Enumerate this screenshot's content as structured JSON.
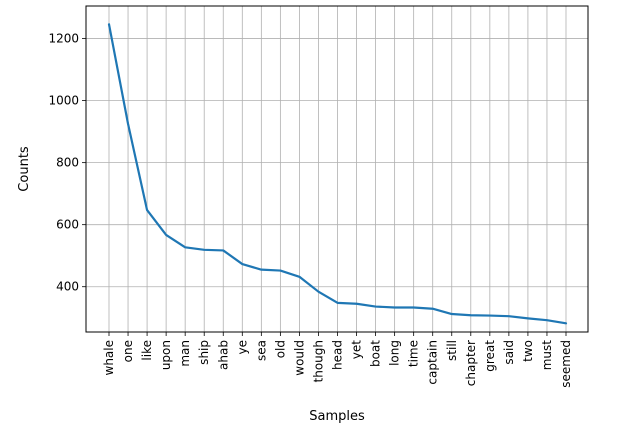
{
  "chart_data": {
    "type": "line",
    "xlabel": "Samples",
    "ylabel": "Counts",
    "categories": [
      "whale",
      "one",
      "like",
      "upon",
      "man",
      "ship",
      "ahab",
      "ye",
      "sea",
      "old",
      "would",
      "though",
      "head",
      "yet",
      "boat",
      "long",
      "time",
      "captain",
      "still",
      "chapter",
      "great",
      "said",
      "two",
      "must",
      "seemed"
    ],
    "values": [
      1246,
      925,
      647,
      567,
      527,
      519,
      517,
      473,
      455,
      452,
      432,
      384,
      348,
      345,
      336,
      333,
      333,
      329,
      312,
      308,
      307,
      305,
      298,
      292,
      282
    ],
    "yticks": [
      400,
      600,
      800,
      1000,
      1200
    ],
    "ytick_labels": [
      "400",
      "600",
      "800",
      "1000",
      "1200"
    ],
    "ylim": [
      254,
      1305
    ],
    "grid": true,
    "line_color": "#1f77b4"
  }
}
